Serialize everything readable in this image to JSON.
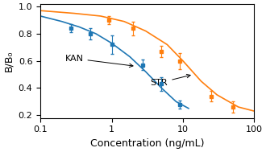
{
  "chart_data": {
    "type": "line",
    "log": "x",
    "x_label": "Concentration (ng/mL)",
    "y_label": "B/B₀",
    "xlim": [
      0.1,
      100
    ],
    "xticks": [
      0.1,
      1,
      10,
      100
    ],
    "ylim": [
      0.18,
      1.02
    ],
    "yticks": [
      0.2,
      0.4,
      0.6,
      0.8,
      1.0
    ],
    "grid": false,
    "series": [
      {
        "type": "line",
        "x": [
          0.1,
          0.2,
          0.35,
          0.6,
          1.0,
          1.8,
          3.0,
          5.0,
          8.0,
          12.0
        ],
        "values": [
          0.93,
          0.89,
          0.85,
          0.8,
          0.73,
          0.63,
          0.52,
          0.4,
          0.3,
          0.25
        ]
      },
      {
        "type": "scatter",
        "marker": "square",
        "x": [
          0.27,
          0.5,
          1.0,
          2.7,
          5.0,
          9.0
        ],
        "values": [
          0.84,
          0.8,
          0.72,
          0.57,
          0.43,
          0.28
        ],
        "errors": [
          0.03,
          0.04,
          0.07,
          0.04,
          0.05,
          0.03
        ]
      },
      {
        "type": "line",
        "x": [
          0.1,
          0.3,
          0.7,
          1.5,
          3.0,
          6.0,
          10.0,
          18.0,
          30.0,
          60.0,
          100.0
        ],
        "values": [
          0.97,
          0.95,
          0.93,
          0.89,
          0.82,
          0.72,
          0.6,
          0.45,
          0.35,
          0.26,
          0.23
        ]
      },
      {
        "type": "scatter",
        "marker": "square",
        "x": [
          0.9,
          2.0,
          5.0,
          9.0,
          25.0,
          50.0
        ],
        "values": [
          0.9,
          0.84,
          0.67,
          0.6,
          0.34,
          0.26
        ],
        "errors": [
          0.03,
          0.05,
          0.04,
          0.06,
          0.04,
          0.04
        ]
      }
    ],
    "annotations": [
      {
        "text": "KAN",
        "x": 0.22,
        "y": 0.6,
        "target": [
          2.2,
          0.56
        ]
      },
      {
        "text": "STR",
        "x": 3.5,
        "y": 0.42,
        "target": [
          14.0,
          0.5
        ]
      }
    ]
  }
}
